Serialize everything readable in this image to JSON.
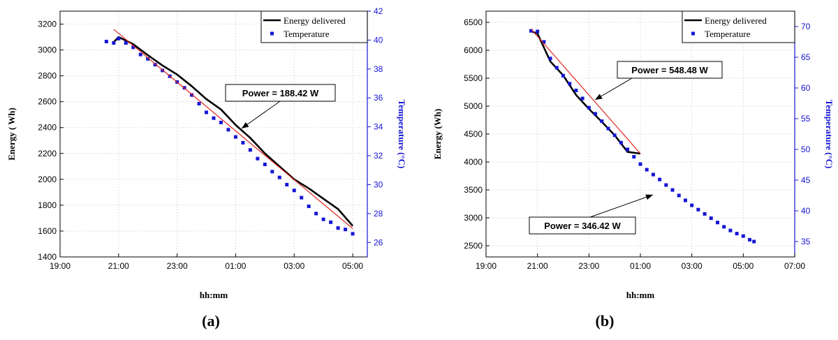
{
  "chart_data": [
    {
      "type": "line",
      "panel_label": "(a)",
      "xlabel": "hh:mm",
      "ylabel": "Energy ( Wh)",
      "y2label": "Temperature (°C)",
      "x_ticks": [
        "19:00",
        "21:00",
        "23:00",
        "01:00",
        "03:00",
        "05:00"
      ],
      "xlim_hours": [
        19,
        29.5
      ],
      "ylim": [
        1400,
        3300
      ],
      "y_ticks": [
        1400,
        1600,
        1800,
        2000,
        2200,
        2400,
        2600,
        2800,
        3000,
        3200
      ],
      "y2lim": [
        25,
        42
      ],
      "y2_ticks": [
        26,
        28,
        30,
        32,
        34,
        36,
        38,
        40,
        42
      ],
      "grid": true,
      "legend_position": "top-right",
      "series": [
        {
          "name": "Energy delivered",
          "axis": "left",
          "style": "line",
          "color": "#000000",
          "x": [
            "20:50",
            "21:00",
            "21:30",
            "22:00",
            "22:30",
            "23:00",
            "23:30",
            "00:00",
            "00:30",
            "01:00",
            "01:30",
            "02:00",
            "02:30",
            "03:00",
            "03:30",
            "04:00",
            "04:30",
            "05:00"
          ],
          "y": [
            3060,
            3100,
            3045,
            2960,
            2880,
            2810,
            2720,
            2620,
            2540,
            2420,
            2320,
            2200,
            2100,
            2000,
            1930,
            1850,
            1770,
            1640
          ]
        },
        {
          "name": "Temperature",
          "axis": "right",
          "style": "markers",
          "color": "#1515d6",
          "x": [
            "20:35",
            "20:50",
            "21:00",
            "21:15",
            "21:30",
            "21:45",
            "22:00",
            "22:15",
            "22:30",
            "22:45",
            "23:00",
            "23:15",
            "23:30",
            "23:45",
            "00:00",
            "00:15",
            "00:30",
            "00:45",
            "01:00",
            "01:15",
            "01:30",
            "01:45",
            "02:00",
            "02:15",
            "02:30",
            "02:45",
            "03:00",
            "03:15",
            "03:30",
            "03:45",
            "04:00",
            "04:15",
            "04:30",
            "04:45",
            "05:00"
          ],
          "y": [
            39.9,
            39.8,
            40.1,
            39.8,
            39.5,
            39.0,
            38.7,
            38.3,
            37.9,
            37.5,
            37.1,
            36.7,
            36.2,
            35.6,
            35.0,
            34.6,
            34.3,
            33.8,
            33.3,
            32.9,
            32.4,
            31.8,
            31.4,
            30.9,
            30.5,
            30.0,
            29.6,
            29.1,
            28.5,
            28.0,
            27.6,
            27.4,
            27.0,
            26.9,
            26.6
          ]
        },
        {
          "name": "",
          "axis": "left",
          "style": "fit",
          "color": "#e0261f",
          "x": [
            "20:50",
            "05:00"
          ],
          "y": [
            3160,
            1620
          ]
        }
      ],
      "annotations": [
        {
          "text": "Power = 188.42 W"
        }
      ]
    },
    {
      "type": "line",
      "panel_label": "(b)",
      "xlabel": "hh:mm",
      "ylabel": "Energy (Wh)",
      "y2label": "Temperature (°C)",
      "x_ticks": [
        "19:00",
        "21:00",
        "23:00",
        "01:00",
        "03:00",
        "05:00",
        "07:00"
      ],
      "xlim_hours": [
        19,
        31
      ],
      "ylim": [
        2300,
        6700
      ],
      "y_ticks": [
        2500,
        3000,
        3500,
        4000,
        4500,
        5000,
        5500,
        6000,
        6500
      ],
      "y2lim": [
        32.5,
        72.5
      ],
      "y2_ticks": [
        35,
        40,
        45,
        50,
        55,
        60,
        65,
        70
      ],
      "grid": true,
      "legend_position": "top-right",
      "series": [
        {
          "name": "Energy delivered",
          "axis": "left",
          "style": "line",
          "color": "#000000",
          "x": [
            "20:45",
            "21:00",
            "21:30",
            "22:00",
            "22:30",
            "23:00",
            "23:30",
            "00:00",
            "00:30",
            "01:00"
          ],
          "y": [
            6340,
            6300,
            5800,
            5550,
            5200,
            4950,
            4720,
            4480,
            4180,
            4150
          ]
        },
        {
          "name": "Temperature",
          "axis": "right",
          "style": "markers",
          "color": "#1515d6",
          "x": [
            "20:45",
            "21:00",
            "21:15",
            "21:30",
            "21:45",
            "22:00",
            "22:15",
            "22:30",
            "22:45",
            "23:00",
            "23:15",
            "23:30",
            "23:45",
            "00:00",
            "00:15",
            "00:30",
            "00:45",
            "01:00",
            "01:15",
            "01:30",
            "01:45",
            "02:00",
            "02:15",
            "02:30",
            "02:45",
            "03:00",
            "03:15",
            "03:30",
            "03:45",
            "04:00",
            "04:15",
            "04:30",
            "04:45",
            "05:00",
            "05:15",
            "05:25"
          ],
          "y": [
            69.3,
            69.2,
            67.5,
            64.8,
            63.3,
            62.0,
            60.7,
            59.6,
            58.3,
            56.8,
            55.8,
            54.6,
            53.4,
            52.3,
            51.1,
            50.0,
            48.8,
            47.6,
            46.7,
            45.9,
            45.1,
            44.2,
            43.4,
            42.5,
            41.7,
            40.9,
            40.2,
            39.5,
            38.8,
            38.1,
            37.4,
            36.8,
            36.3,
            35.9,
            35.3,
            35.0
          ]
        },
        {
          "name": "",
          "axis": "left",
          "style": "fit",
          "color": "#e0261f",
          "x": [
            "20:45",
            "01:00"
          ],
          "y": [
            6380,
            4150
          ]
        }
      ],
      "annotations": [
        {
          "text": "Power = 548.48 W"
        },
        {
          "text": "Power = 346.42 W"
        }
      ]
    }
  ]
}
